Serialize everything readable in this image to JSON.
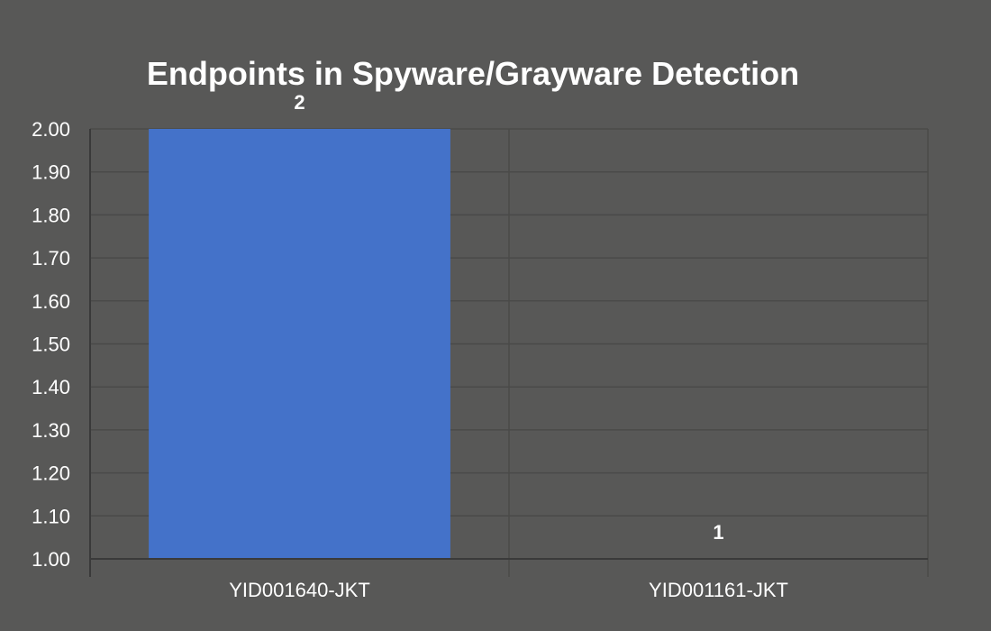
{
  "chart_data": {
    "type": "bar",
    "title": "Endpoints in Spyware/Grayware Detection",
    "categories": [
      "YID001640-JKT",
      "YID001161-JKT"
    ],
    "values": [
      2,
      1
    ],
    "data_labels": [
      "2",
      "1"
    ],
    "xlabel": "",
    "ylabel": "",
    "ylim": [
      1.0,
      2.0
    ],
    "yticks": [
      "1.00",
      "1.10",
      "1.20",
      "1.30",
      "1.40",
      "1.50",
      "1.60",
      "1.70",
      "1.80",
      "1.90",
      "2.00"
    ],
    "grid": true,
    "legend": "none",
    "colors": {
      "background": "#585857",
      "bar": "#4472c9",
      "grid": "#4a4a49",
      "axis": "#3a3a3a",
      "text": "#ffffff"
    }
  }
}
